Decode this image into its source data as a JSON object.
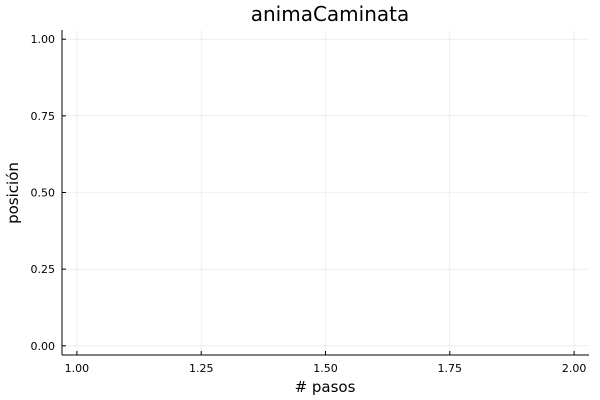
{
  "chart_data": {
    "type": "line",
    "title": "animaCaminata",
    "xlabel": "# pasos",
    "ylabel": "posición",
    "xlim": [
      0.97,
      2.03
    ],
    "ylim": [
      -0.03,
      1.03
    ],
    "xticks": [
      1.0,
      1.25,
      1.5,
      1.75,
      2.0
    ],
    "xtick_labels": [
      "1.00",
      "1.25",
      "1.50",
      "1.75",
      "2.00"
    ],
    "yticks": [
      0.0,
      0.25,
      0.5,
      0.75,
      1.0
    ],
    "ytick_labels": [
      "0.00",
      "0.25",
      "0.50",
      "0.75",
      "1.00"
    ],
    "grid": true,
    "legend": "none",
    "series": []
  }
}
